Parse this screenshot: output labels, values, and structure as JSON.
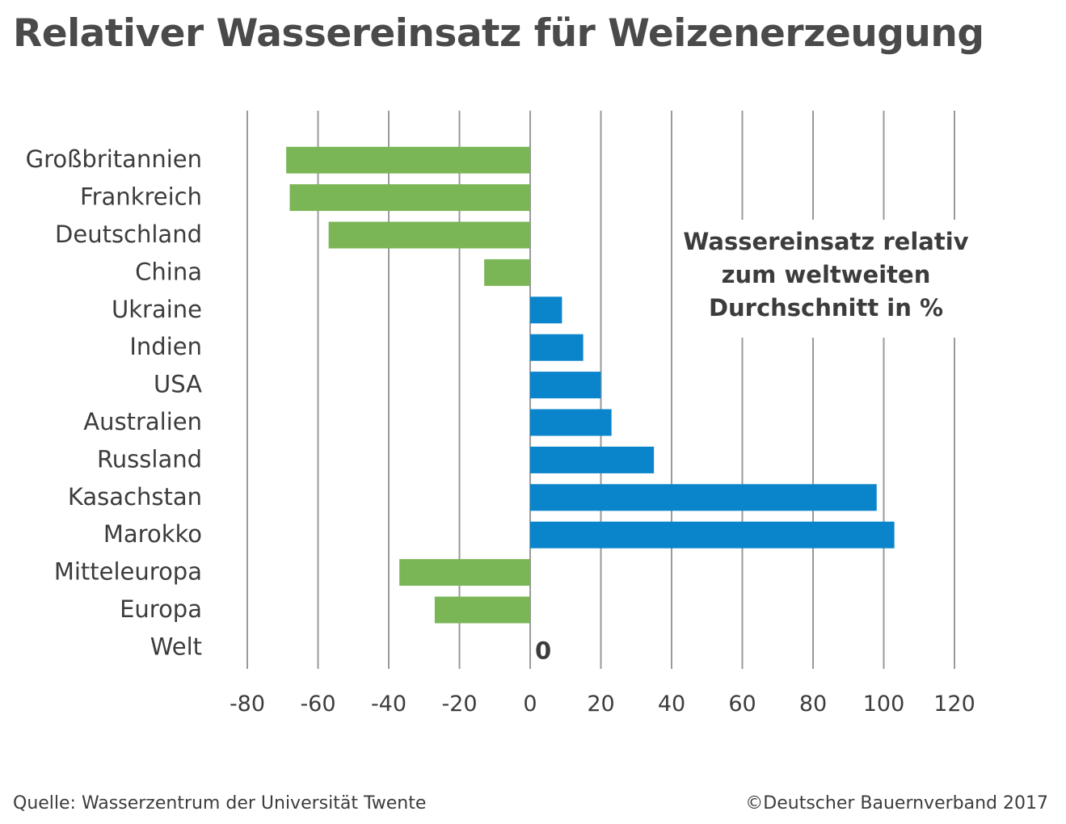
{
  "title": "Relativer Wassereinsatz für Weizenerzeugung",
  "footer": {
    "source": "Quelle: Wasserzentrum der Universität Twente",
    "copyright": "©Deutscher Bauernverband 2017"
  },
  "colors": {
    "negative": "#7ab656",
    "positive": "#0a85cb",
    "grid": "#9a9a9a"
  },
  "chart_data": {
    "type": "bar",
    "orientation": "horizontal",
    "categories": [
      "Großbritannien",
      "Frankreich",
      "Deutschland",
      "China",
      "Ukraine",
      "Indien",
      "USA",
      "Australien",
      "Russland",
      "Kasachstan",
      "Marokko",
      "Mitteleuropa",
      "Europa",
      "Welt"
    ],
    "values": [
      -69,
      -68,
      -57,
      -13,
      9,
      15,
      20,
      23,
      35,
      98,
      103,
      -37,
      -27,
      0
    ],
    "value_label": "0",
    "annotation": [
      "Wassereinsatz relativ",
      "zum weltweiten",
      "Durchschnitt in %"
    ],
    "xlim": [
      -80,
      120
    ],
    "xticks": [
      -80,
      -60,
      -40,
      -20,
      0,
      20,
      40,
      60,
      80,
      100,
      120
    ],
    "grid": "vertical"
  }
}
